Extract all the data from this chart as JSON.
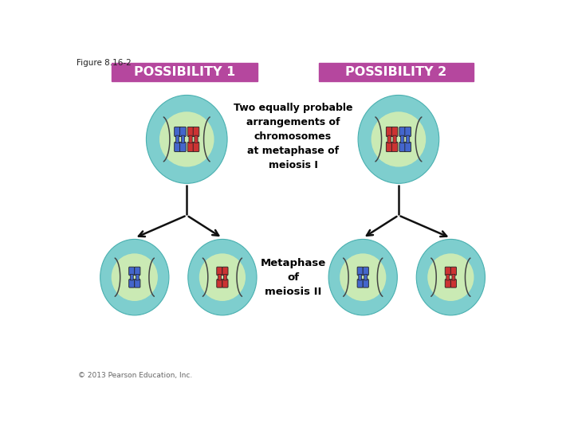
{
  "figure_label": "Figure 8.16-2",
  "possibility1_label": "POSSIBILITY 1",
  "possibility2_label": "POSSIBILITY 2",
  "header_color": "#b5479e",
  "header_text_color": "#ffffff",
  "cell_outer_color": "#7ecece",
  "cell_inner_color": "#d8f0b0",
  "blue_chrom": "#4466cc",
  "red_chrom": "#cc3333",
  "center_text": "Two equally probable\narrangements of\nchromosomes\nat metaphase of\nmeiosis I",
  "metaphase_text": "Metaphase\nof\nmeiosis II",
  "copyright": "© 2013 Pearson Education, Inc.",
  "bg_color": "#ffffff",
  "arrow_color": "#111111"
}
